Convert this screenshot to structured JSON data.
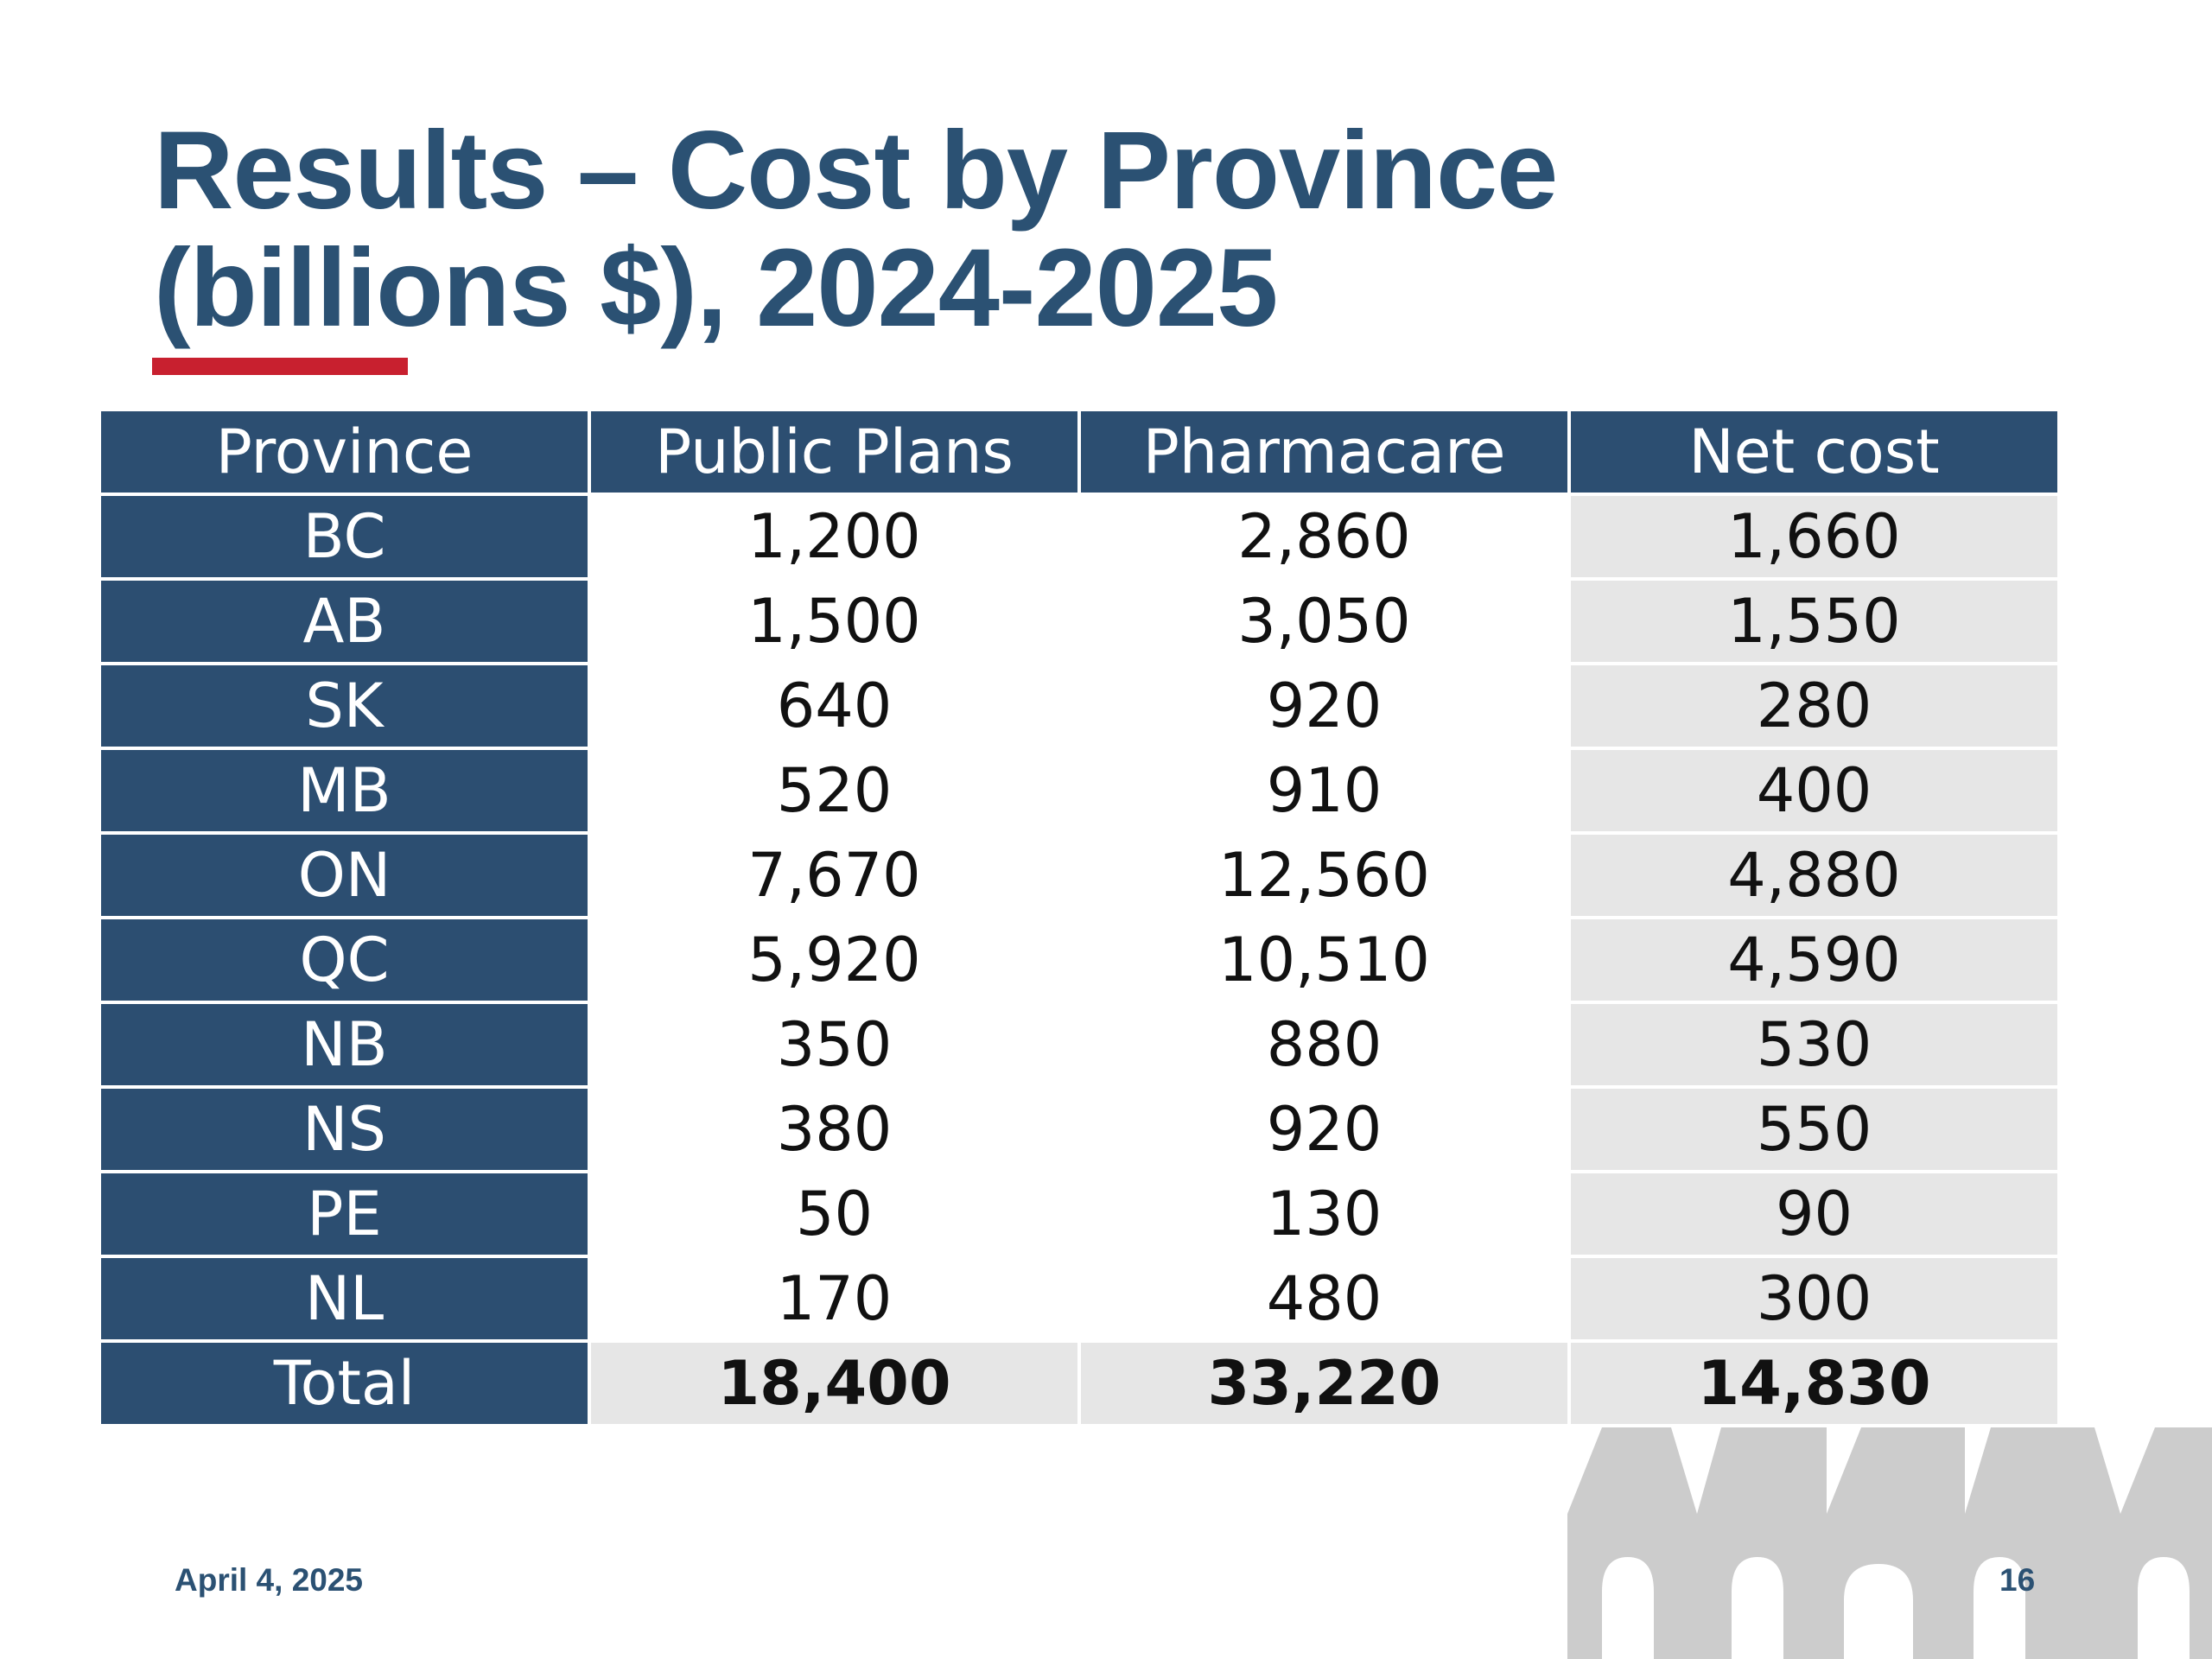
{
  "slide": {
    "title_line1": "Results – Cost by Province",
    "title_line2": "(billions $), 2024-2025",
    "date": "April 4, 2025",
    "page_number": "16",
    "accent_color": "#c8202f",
    "title_color": "#2b5173",
    "header_color": "#2c4e71"
  },
  "table": {
    "headers": [
      "Province",
      "Public Plans",
      "Pharmacare",
      "Net cost"
    ],
    "rows": [
      {
        "province": "BC",
        "public_plans": "1,200",
        "pharmacare": "2,860",
        "net_cost": "1,660"
      },
      {
        "province": "AB",
        "public_plans": "1,500",
        "pharmacare": "3,050",
        "net_cost": "1,550"
      },
      {
        "province": "SK",
        "public_plans": "640",
        "pharmacare": "920",
        "net_cost": "280"
      },
      {
        "province": "MB",
        "public_plans": "520",
        "pharmacare": "910",
        "net_cost": "400"
      },
      {
        "province": "ON",
        "public_plans": "7,670",
        "pharmacare": "12,560",
        "net_cost": "4,880"
      },
      {
        "province": "QC",
        "public_plans": "5,920",
        "pharmacare": "10,510",
        "net_cost": "4,590"
      },
      {
        "province": "NB",
        "public_plans": "350",
        "pharmacare": "880",
        "net_cost": "530"
      },
      {
        "province": "NS",
        "public_plans": "380",
        "pharmacare": "920",
        "net_cost": "550"
      },
      {
        "province": "PE",
        "public_plans": "50",
        "pharmacare": "130",
        "net_cost": "90"
      },
      {
        "province": "NL",
        "public_plans": "170",
        "pharmacare": "480",
        "net_cost": "300"
      }
    ],
    "total": {
      "province": "Total",
      "public_plans": "18,400",
      "pharmacare": "33,220",
      "net_cost": "14,830"
    }
  },
  "decor": {
    "watermark_icon": "building-silhouette-icon"
  }
}
